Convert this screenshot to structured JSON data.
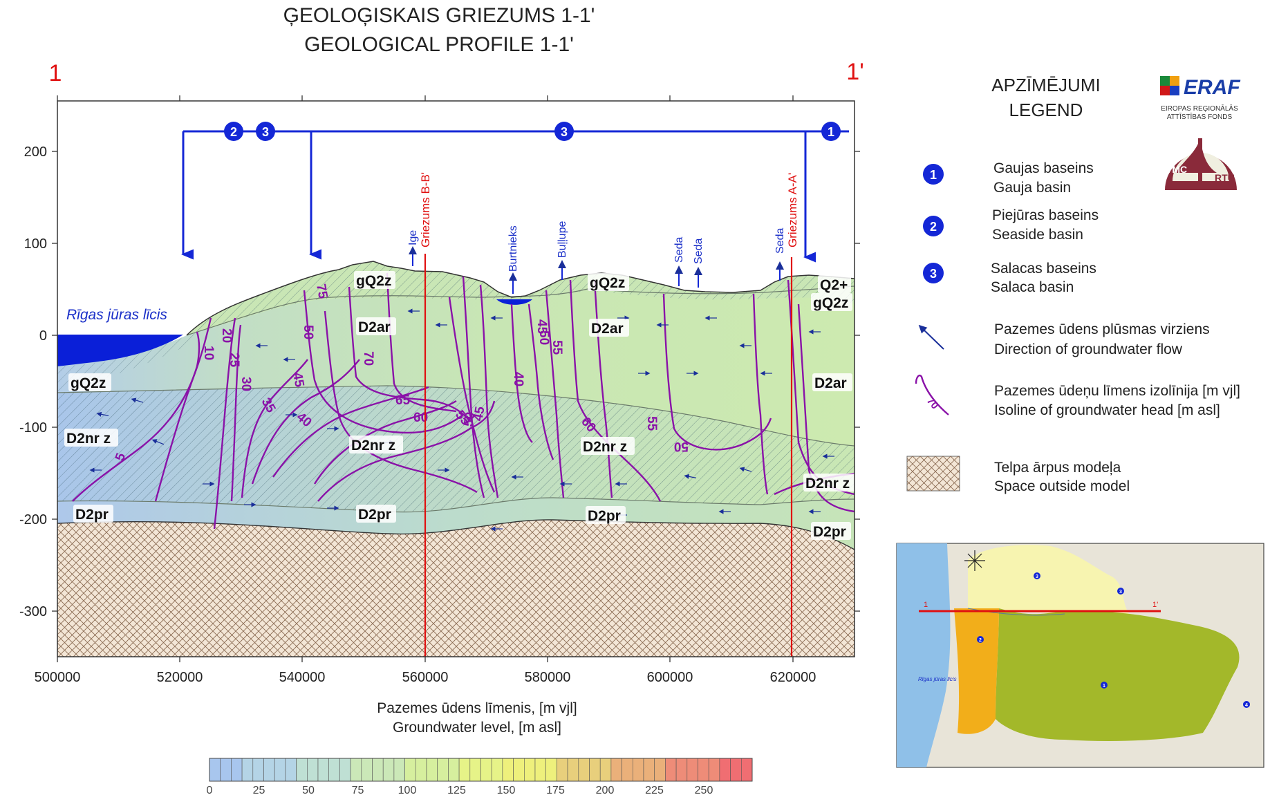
{
  "title": {
    "line1": "ĢEOLOĢISKAIS GRIEZUMS 1-1'",
    "line2": "GEOLOGICAL PROFILE 1-1'"
  },
  "profile_ends": {
    "left": "1",
    "right": "1'"
  },
  "axes": {
    "x_ticks": [
      "500000",
      "520000",
      "540000",
      "560000",
      "580000",
      "600000",
      "620000"
    ],
    "y_ticks": [
      "200",
      "100",
      "0",
      "-100",
      "-200",
      "-300"
    ],
    "x_title_lv": "Pazemes ūdens līmenis, [m vjl]",
    "x_title_en": "Groundwater level, [m asl]"
  },
  "layers": [
    {
      "name": "gQ2z-top-left",
      "label": "gQ2z"
    },
    {
      "name": "gQ2z-top-right",
      "label": "gQ2z"
    },
    {
      "name": "q2-right",
      "label": "Q2+"
    },
    {
      "name": "gQ2z-right",
      "label": "gQ2z"
    },
    {
      "name": "d2ar-center",
      "label": "D2ar"
    },
    {
      "name": "d2ar-mid",
      "label": "D2ar"
    },
    {
      "name": "d2ar-right",
      "label": "D2ar"
    },
    {
      "name": "gQ2z-left",
      "label": "gQ2z"
    },
    {
      "name": "d2nrz-left",
      "label": "D2nr z"
    },
    {
      "name": "d2nrz-center",
      "label": "D2nr z"
    },
    {
      "name": "d2nrz-mid",
      "label": "D2nr z"
    },
    {
      "name": "d2nrz-right",
      "label": "D2nr z"
    },
    {
      "name": "d2pr-left",
      "label": "D2pr"
    },
    {
      "name": "d2pr-center",
      "label": "D2pr"
    },
    {
      "name": "d2pr-mid",
      "label": "D2pr"
    },
    {
      "name": "d2pr-right",
      "label": "D2pr"
    }
  ],
  "sea_label": "Rīgas jūras līcis",
  "rivers": [
    "Ige",
    "Burtnieks",
    "Buļļupe",
    "Seda",
    "Seda",
    "Seda"
  ],
  "sections": [
    "Griezums B-B'",
    "Griezums A-A'"
  ],
  "isolines": [
    "5",
    "10",
    "20",
    "25",
    "30",
    "35",
    "40",
    "45",
    "45",
    "45",
    "50",
    "50",
    "55",
    "55",
    "55",
    "60",
    "60",
    "65",
    "70",
    "40",
    "75",
    "50",
    "50"
  ],
  "basin_markers": [
    "2",
    "3",
    "3",
    "1"
  ],
  "legend": {
    "heading_lv": "APZĪMĒJUMI",
    "heading_en": "LEGEND",
    "items": [
      {
        "badge": "1",
        "lv": "Gaujas baseins",
        "en": "Gauja basin"
      },
      {
        "badge": "2",
        "lv": "Piejūras baseins",
        "en": "Seaside basin"
      },
      {
        "badge": "3",
        "lv": "Salacas baseins",
        "en": "Salaca basin"
      }
    ],
    "flow_lv": "Pazemes ūdens plūsmas virziens",
    "flow_en": "Direction of groundwater flow",
    "iso_lv": "Pazemes ūdeņu līmens izolīnija [m vjl]",
    "iso_en": "Isoline of groundwater head [m asl]",
    "iso_sample": "70",
    "outside_lv": "Telpa ārpus modeļa",
    "outside_en": "Space outside model"
  },
  "logos": {
    "eraf": "ERAF",
    "eraf_sub1": "EIROPAS REĢIONĀLĀS",
    "eraf_sub2": "ATTĪSTĪBAS FONDS",
    "vmc": "VMC",
    "rtu": "RTU"
  },
  "colorbar": {
    "labels": [
      "0",
      "25",
      "50",
      "75",
      "100",
      "125",
      "150",
      "175",
      "200",
      "225",
      "250"
    ],
    "colors": [
      "#a8c6ee",
      "#b4d4e6",
      "#bfe0d4",
      "#cbe8b8",
      "#d6ef9e",
      "#e6f388",
      "#eef07c",
      "#e8cf7c",
      "#eab07a",
      "#ee8c78",
      "#f06e72"
    ]
  },
  "inset_map": {
    "sea_label": "Rīgas jūras līcis",
    "line_start": "1",
    "line_end": "1'",
    "markers": [
      "3",
      "3",
      "2",
      "1",
      "4"
    ]
  },
  "colors": {
    "section_red": "#e01010",
    "basin_blue": "#1427d6",
    "isoline_purple": "#8a12a8",
    "sea": "#0a1fd8"
  }
}
